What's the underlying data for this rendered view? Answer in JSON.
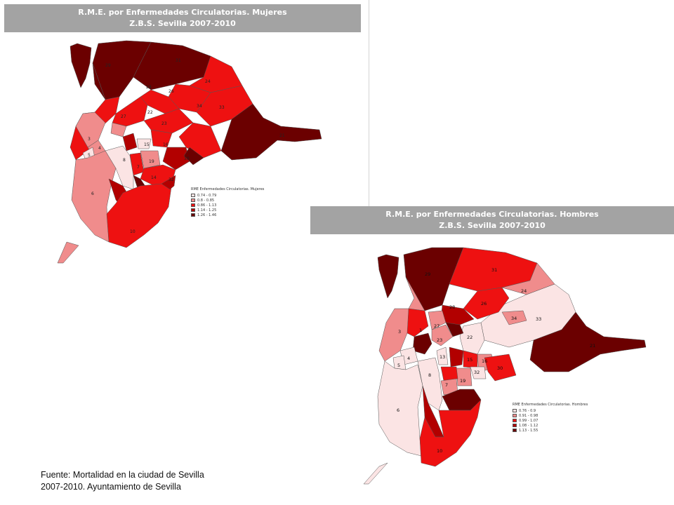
{
  "map_women": {
    "title_line1": "R.M.E. por Enfermedades Circulatorias. Mujeres",
    "title_line2": "Z.B.S. Sevilla 2007-2010",
    "legend_title": "RME Enfermedades Circulatorias. Mujeres",
    "legend": [
      {
        "label": "0.74 - 0.79",
        "color": "#fbe4e4"
      },
      {
        "label": "0.8 - 0.85",
        "color": "#f08c8c"
      },
      {
        "label": "0.86 - 1.13",
        "color": "#ee1111"
      },
      {
        "label": "1.14 - 1.25",
        "color": "#b20000"
      },
      {
        "label": "1.26 - 1.46",
        "color": "#6b0000"
      }
    ],
    "zone_labels": [
      "1",
      "2",
      "3",
      "4",
      "5",
      "6",
      "7",
      "8",
      "10",
      "11",
      "12",
      "13",
      "14",
      "15",
      "16",
      "17",
      "18",
      "19",
      "20",
      "21",
      "22",
      "23",
      "24",
      "25",
      "26",
      "27",
      "28",
      "29",
      "30",
      "31",
      "32",
      "33"
    ]
  },
  "map_men": {
    "title_line1": "R.M.E. por Enfermedades Circulatorias. Hombres",
    "title_line2": "Z.B.S. Sevilla 2007-2010",
    "legend_title": "RME Enfermedades Circulatorias. Hombres",
    "legend": [
      {
        "label": "0.76 - 0.9",
        "color": "#fbe4e4"
      },
      {
        "label": "0.91 - 0.98",
        "color": "#f08c8c"
      },
      {
        "label": "0.99 - 1.07",
        "color": "#ee1111"
      },
      {
        "label": "1.08 - 1.12",
        "color": "#b20000"
      },
      {
        "label": "1.13 - 1.55",
        "color": "#6b0000"
      }
    ],
    "zone_labels": [
      "1",
      "2",
      "3",
      "4",
      "5",
      "6",
      "7",
      "8",
      "10",
      "11",
      "12",
      "13",
      "14",
      "15",
      "16",
      "17",
      "18",
      "19",
      "20",
      "21",
      "22",
      "23",
      "24",
      "25",
      "26",
      "27",
      "28",
      "29",
      "30",
      "31",
      "32",
      "33"
    ]
  },
  "source": {
    "line1": "Fuente: Mortalidad en la ciudad de Sevilla",
    "line2": "2007-2010.  Ayuntamiento de Sevilla"
  }
}
